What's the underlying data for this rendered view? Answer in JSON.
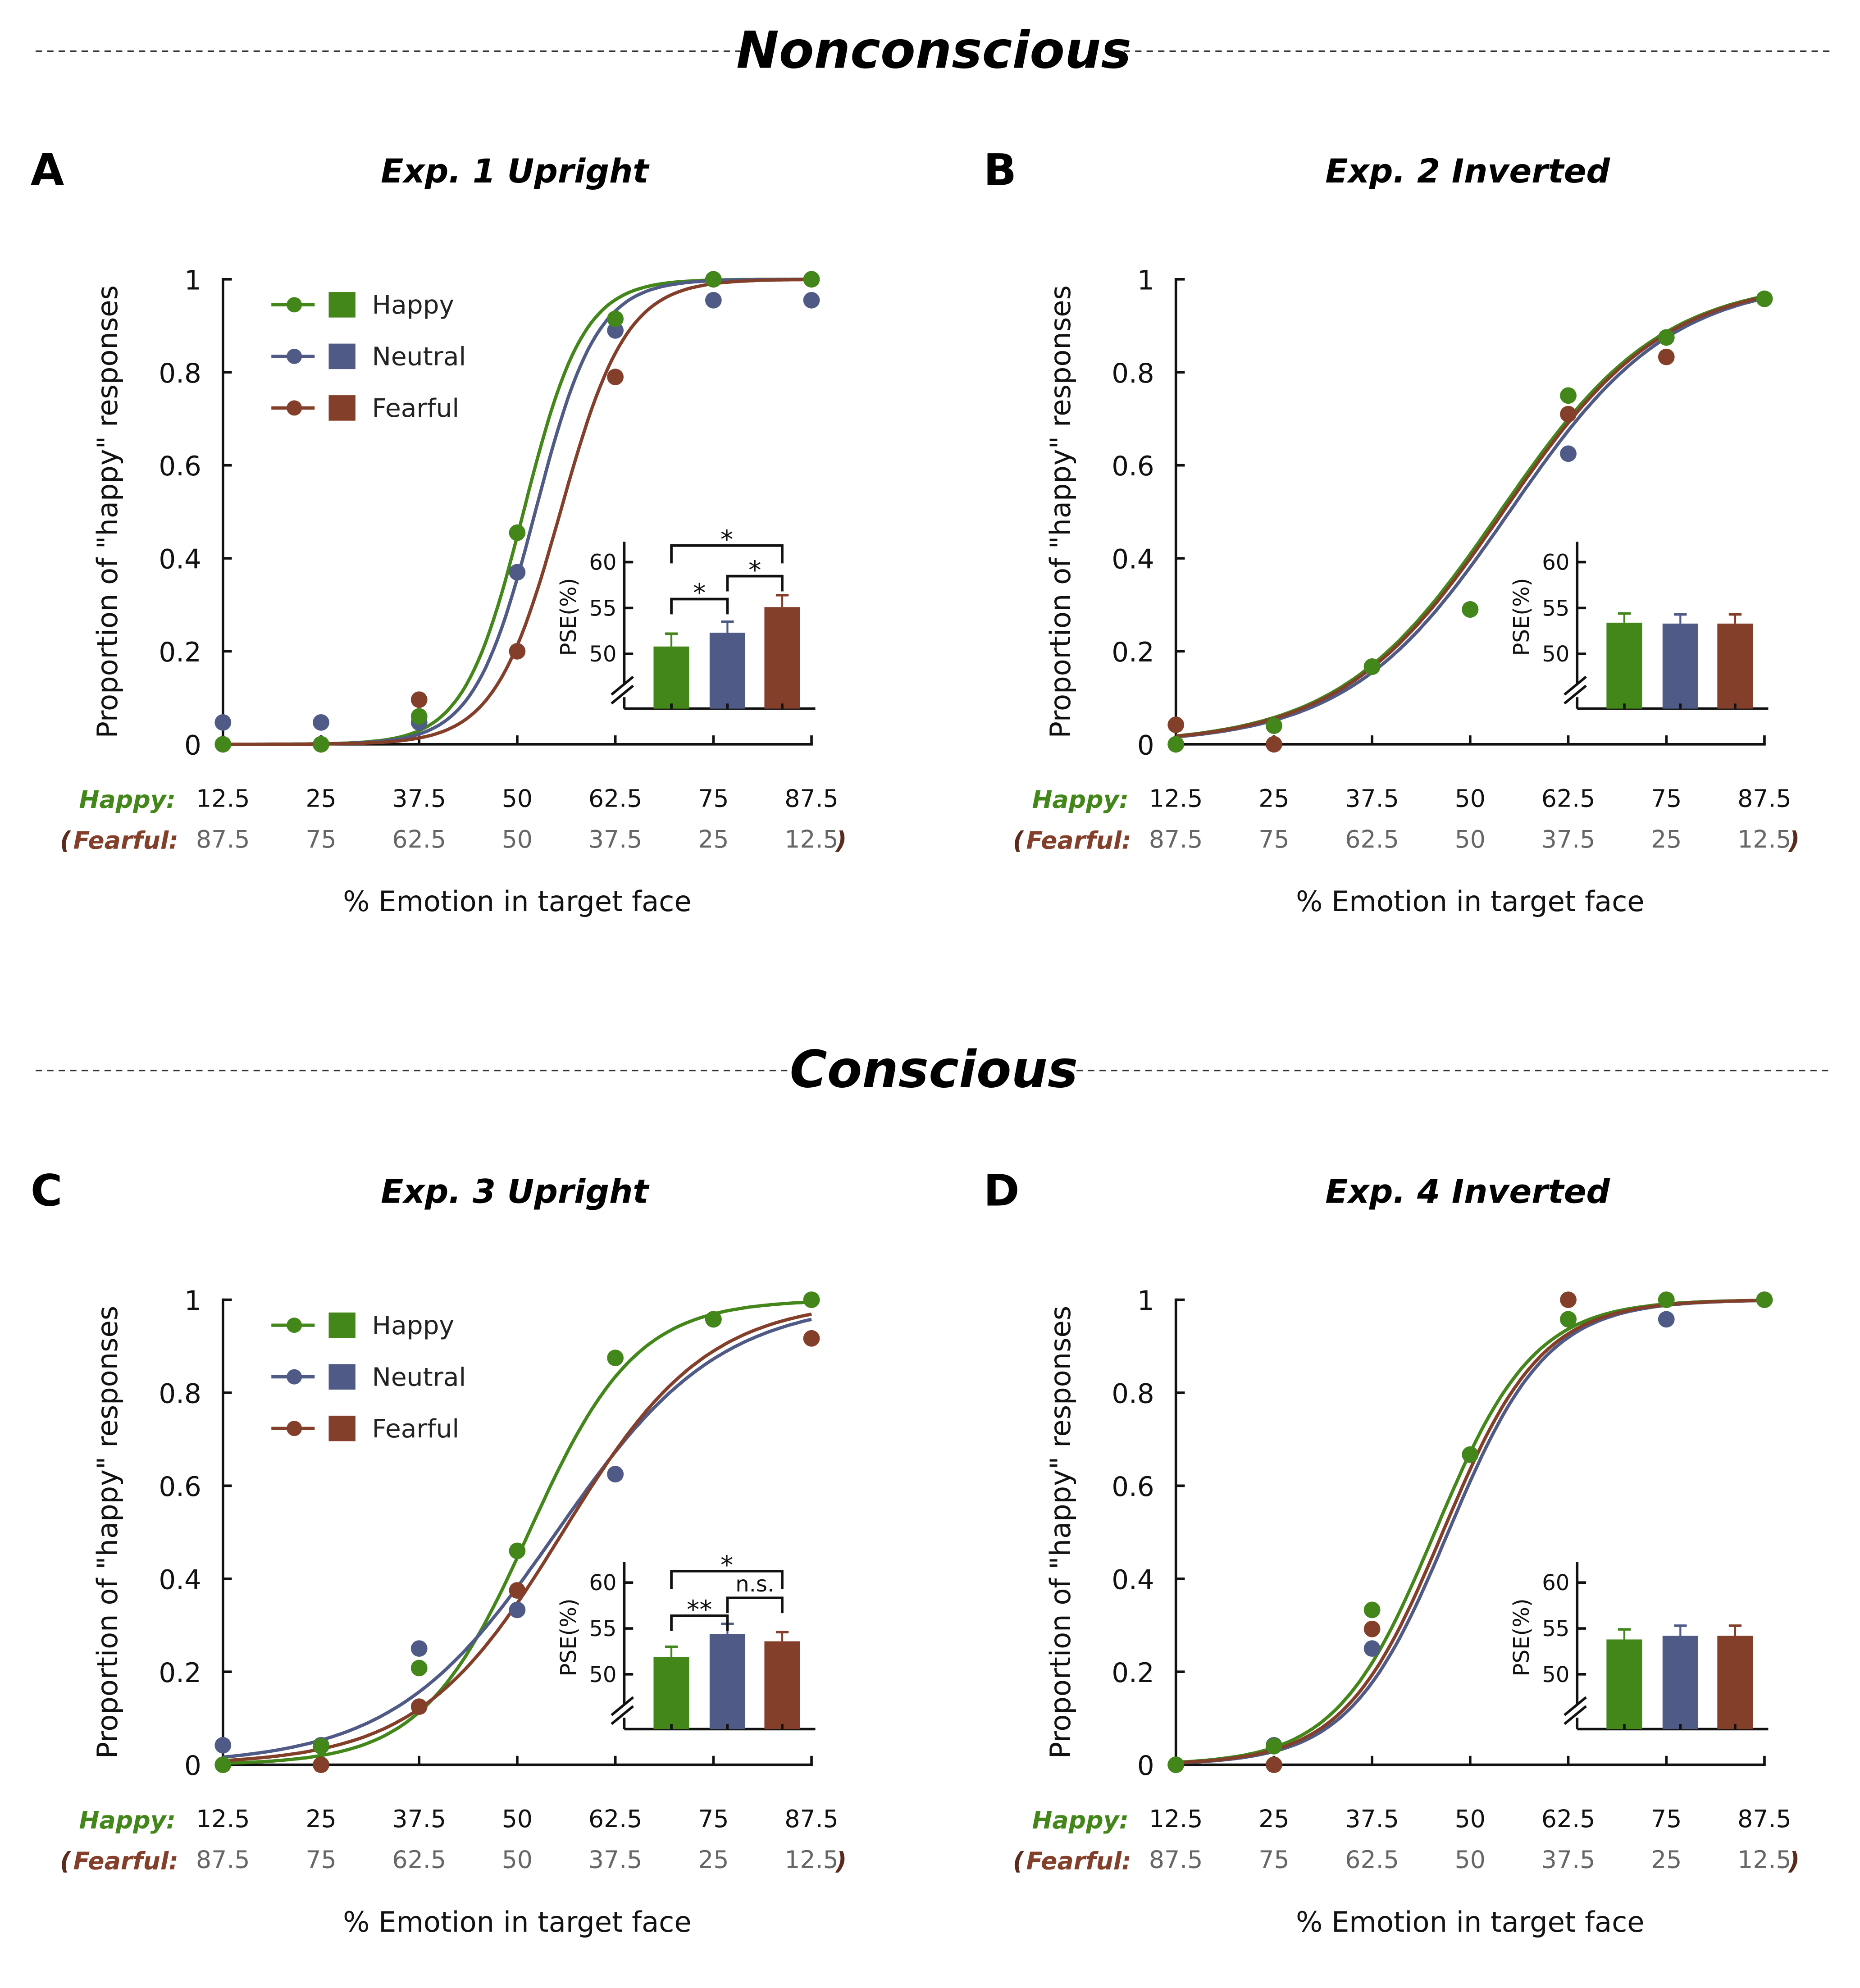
{
  "sections": [
    {
      "label": "Nonconscious"
    },
    {
      "label": "Conscious"
    }
  ],
  "colors": {
    "Happy": "#43861a",
    "Neutral": "#4f5b86",
    "Fearful": "#843f2b"
  },
  "chart_data": [
    {
      "type": "line",
      "letter": "A",
      "title": "Exp. 1  Upright",
      "ylabel": "Proportion of \"happy\" responses",
      "xlabel": "%  Emotion in target face",
      "x_row1_label": "Happy:",
      "x_row2_label": "Fearful:",
      "x": [
        12.5,
        25,
        37.5,
        50,
        62.5,
        75,
        87.5
      ],
      "x_row2": [
        "87.5",
        "75",
        "62.5",
        "50",
        "37.5",
        "25",
        "12.5"
      ],
      "x_tick_labels": [
        "12.5",
        "25",
        "37.5",
        "50",
        "62.5",
        "75",
        "87.5"
      ],
      "y_ticks": [
        "0",
        "0.2",
        "0.4",
        "0.6",
        "0.8",
        "1"
      ],
      "ylim": [
        0,
        1
      ],
      "legend": [
        "Happy",
        "Neutral",
        "Fearful"
      ],
      "legend_position": "top-left",
      "series": [
        {
          "name": "Happy",
          "values": [
            0,
            0,
            0.06,
            0.455,
            0.915,
            1,
            1
          ]
        },
        {
          "name": "Neutral",
          "values": [
            0.047,
            0.047,
            0.047,
            0.37,
            0.89,
            0.955,
            0.955
          ]
        },
        {
          "name": "Fearful",
          "values": [
            0,
            0,
            0.096,
            0.2,
            0.79,
            1,
            1
          ]
        }
      ],
      "inset": {
        "type": "bar",
        "ylabel": "PSE(%)",
        "y_ticks": [
          "50",
          "55",
          "60"
        ],
        "ylim": [
          50,
          60
        ],
        "axis_break": true,
        "categories": [
          "Happy",
          "Neutral",
          "Fearful"
        ],
        "values": [
          50.8,
          52.3,
          55.1
        ],
        "errors": [
          1.4,
          1.2,
          1.3
        ],
        "significance": [
          {
            "pair": [
              "Happy",
              "Neutral"
            ],
            "label": "*"
          },
          {
            "pair": [
              "Neutral",
              "Fearful"
            ],
            "label": "*"
          },
          {
            "pair": [
              "Happy",
              "Fearful"
            ],
            "label": "*"
          }
        ]
      }
    },
    {
      "type": "line",
      "letter": "B",
      "title": "Exp. 2  Inverted",
      "ylabel": "Proportion of \"happy\" responses",
      "xlabel": "%  Emotion in target face",
      "x_row1_label": "Happy:",
      "x_row2_label": "Fearful:",
      "x": [
        12.5,
        25,
        37.5,
        50,
        62.5,
        75,
        87.5
      ],
      "x_row2": [
        "87.5",
        "75",
        "62.5",
        "50",
        "37.5",
        "25",
        "12.5"
      ],
      "x_tick_labels": [
        "12.5",
        "25",
        "37.5",
        "50",
        "62.5",
        "75",
        "87.5"
      ],
      "y_ticks": [
        "0",
        "0.2",
        "0.4",
        "0.6",
        "0.8",
        "1"
      ],
      "ylim": [
        0,
        1
      ],
      "series": [
        {
          "name": "Happy",
          "values": [
            0,
            0.04,
            0.167,
            0.29,
            0.75,
            0.875,
            0.958
          ]
        },
        {
          "name": "Neutral",
          "values": [
            0,
            0.04,
            0.167,
            0.29,
            0.625,
            0.875,
            0.958
          ]
        },
        {
          "name": "Fearful",
          "values": [
            0.042,
            0,
            0.167,
            0.29,
            0.71,
            0.833,
            0.958
          ]
        }
      ],
      "inset": {
        "type": "bar",
        "ylabel": "PSE(%)",
        "y_ticks": [
          "50",
          "55",
          "60"
        ],
        "ylim": [
          50,
          60
        ],
        "axis_break": true,
        "categories": [
          "Happy",
          "Neutral",
          "Fearful"
        ],
        "values": [
          53.4,
          53.3,
          53.3
        ],
        "errors": [
          1.0,
          1.0,
          1.0
        ],
        "significance": []
      }
    },
    {
      "type": "line",
      "letter": "C",
      "title": "Exp. 3  Upright",
      "ylabel": "Proportion of \"happy\" responses",
      "xlabel": "%  Emotion in target face",
      "x_row1_label": "Happy:",
      "x_row2_label": "Fearful:",
      "x": [
        12.5,
        25,
        37.5,
        50,
        62.5,
        75,
        87.5
      ],
      "x_row2": [
        "87.5",
        "75",
        "62.5",
        "50",
        "37.5",
        "25",
        "12.5"
      ],
      "x_tick_labels": [
        "12.5",
        "25",
        "37.5",
        "50",
        "62.5",
        "75",
        "87.5"
      ],
      "y_ticks": [
        "0",
        "0.2",
        "0.4",
        "0.6",
        "0.8",
        "1"
      ],
      "ylim": [
        0,
        1
      ],
      "legend": [
        "Happy",
        "Neutral",
        "Fearful"
      ],
      "legend_position": "top-left",
      "series": [
        {
          "name": "Happy",
          "values": [
            0,
            0.04,
            0.208,
            0.46,
            0.875,
            0.958,
            1
          ]
        },
        {
          "name": "Neutral",
          "values": [
            0.042,
            0.042,
            0.25,
            0.333,
            0.625,
            0.958,
            1
          ]
        },
        {
          "name": "Fearful",
          "values": [
            0,
            0,
            0.125,
            0.375,
            0.625,
            0.958,
            0.917
          ]
        }
      ],
      "inset": {
        "type": "bar",
        "ylabel": "PSE(%)",
        "y_ticks": [
          "50",
          "55",
          "60"
        ],
        "ylim": [
          50,
          60
        ],
        "axis_break": true,
        "categories": [
          "Happy",
          "Neutral",
          "Fearful"
        ],
        "values": [
          51.9,
          54.4,
          53.6
        ],
        "errors": [
          1.1,
          1.1,
          1.0
        ],
        "significance": [
          {
            "pair": [
              "Happy",
              "Neutral"
            ],
            "label": "**"
          },
          {
            "pair": [
              "Neutral",
              "Fearful"
            ],
            "label": "n.s."
          },
          {
            "pair": [
              "Happy",
              "Fearful"
            ],
            "label": "*"
          }
        ]
      }
    },
    {
      "type": "line",
      "letter": "D",
      "title": "Exp. 4  Inverted",
      "ylabel": "Proportion of \"happy\" responses",
      "xlabel": "%  Emotion in target face",
      "x_row1_label": "Happy:",
      "x_row2_label": "Fearful:",
      "x": [
        12.5,
        25,
        37.5,
        50,
        62.5,
        75,
        87.5
      ],
      "x_row2": [
        "87.5",
        "75",
        "62.5",
        "50",
        "37.5",
        "25",
        "12.5"
      ],
      "x_tick_labels": [
        "12.5",
        "25",
        "37.5",
        "50",
        "62.5",
        "75",
        "87.5"
      ],
      "y_ticks": [
        "0",
        "0.2",
        "0.4",
        "0.6",
        "0.8",
        "1"
      ],
      "ylim": [
        0,
        1
      ],
      "series": [
        {
          "name": "Happy",
          "values": [
            0,
            0.04,
            0.333,
            0.667,
            0.958,
            1,
            1
          ]
        },
        {
          "name": "Neutral",
          "values": [
            0,
            0.042,
            0.25,
            0.667,
            0.958,
            0.958,
            1
          ]
        },
        {
          "name": "Fearful",
          "values": [
            0,
            0,
            0.292,
            0.667,
            1,
            1,
            1
          ]
        }
      ],
      "inset": {
        "type": "bar",
        "ylabel": "PSE(%)",
        "y_ticks": [
          "50",
          "55",
          "60"
        ],
        "ylim": [
          50,
          60
        ],
        "axis_break": true,
        "categories": [
          "Happy",
          "Neutral",
          "Fearful"
        ],
        "values": [
          53.8,
          54.2,
          54.2
        ],
        "errors": [
          1.1,
          1.1,
          1.1
        ],
        "significance": []
      }
    }
  ]
}
